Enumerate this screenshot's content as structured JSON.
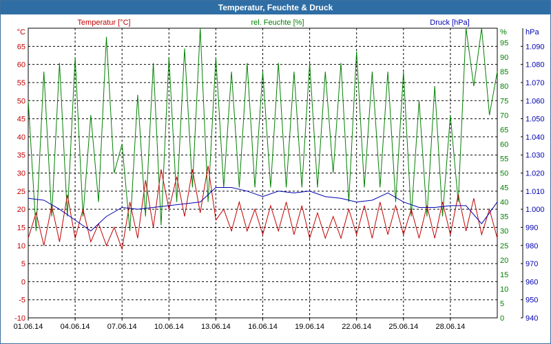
{
  "window": {
    "title": "Temperatur, Feuchte & Druck"
  },
  "colors": {
    "temperature": "#c00000",
    "humidity": "#008000",
    "pressure": "#0000b0",
    "grid": "#000000"
  },
  "chart_data": {
    "type": "line",
    "title": "Temperatur, Feuchte & Druck",
    "x_tick_labels": [
      "01.06.14",
      "04.06.14",
      "07.06.14",
      "10.06.14",
      "13.06.14",
      "16.06.14",
      "19.06.14",
      "22.06.14",
      "25.06.14",
      "28.06.14"
    ],
    "x_range_days": [
      0,
      30
    ],
    "axes": {
      "temperature": {
        "label": "Temperatur [°C]",
        "unit": "°C",
        "range": [
          -10,
          70
        ],
        "ticks": [
          -10,
          -5,
          0,
          5,
          10,
          15,
          20,
          25,
          30,
          35,
          40,
          45,
          50,
          55,
          60,
          65
        ]
      },
      "humidity": {
        "label": "rel. Feuchte [%]",
        "unit": "%",
        "range": [
          0,
          100
        ],
        "ticks": [
          0,
          5,
          10,
          15,
          20,
          25,
          30,
          35,
          40,
          45,
          50,
          55,
          60,
          65,
          70,
          75,
          80,
          85,
          90,
          95
        ]
      },
      "pressure": {
        "label": "Druck [hPa]",
        "unit": "hPa",
        "range": [
          940,
          1100
        ],
        "ticks": [
          "940",
          "950",
          "960",
          "970",
          "980",
          "990",
          "1.000",
          "1.010",
          "1.020",
          "1.030",
          "1.040",
          "1.050",
          "1.060",
          "1.070",
          "1.080",
          "1.090"
        ]
      }
    },
    "series": [
      {
        "name": "Temperatur [°C]",
        "axis": "temperature",
        "values": [
          [
            0,
            12
          ],
          [
            0.5,
            19
          ],
          [
            1,
            10
          ],
          [
            1.5,
            21
          ],
          [
            2,
            11
          ],
          [
            2.5,
            24
          ],
          [
            3,
            12
          ],
          [
            3.5,
            20
          ],
          [
            4,
            11
          ],
          [
            4.5,
            16
          ],
          [
            5,
            10
          ],
          [
            5.5,
            15
          ],
          [
            6,
            9
          ],
          [
            6.5,
            22
          ],
          [
            7,
            12
          ],
          [
            7.5,
            28
          ],
          [
            8,
            15
          ],
          [
            8.5,
            31
          ],
          [
            9,
            20
          ],
          [
            9.5,
            29
          ],
          [
            10,
            18
          ],
          [
            10.5,
            31
          ],
          [
            11,
            19
          ],
          [
            11.5,
            32
          ],
          [
            12,
            17
          ],
          [
            12.5,
            20
          ],
          [
            13,
            14
          ],
          [
            13.5,
            22
          ],
          [
            14,
            14
          ],
          [
            14.5,
            20
          ],
          [
            15,
            13
          ],
          [
            15.5,
            21
          ],
          [
            16,
            14
          ],
          [
            16.5,
            22
          ],
          [
            17,
            13
          ],
          [
            17.5,
            21
          ],
          [
            18,
            12
          ],
          [
            18.5,
            19
          ],
          [
            19,
            12
          ],
          [
            19.5,
            18
          ],
          [
            20,
            12
          ],
          [
            20.5,
            20
          ],
          [
            21,
            13
          ],
          [
            21.5,
            21
          ],
          [
            22,
            12
          ],
          [
            22.5,
            22
          ],
          [
            23,
            13
          ],
          [
            23.5,
            21
          ],
          [
            24,
            13
          ],
          [
            24.5,
            20
          ],
          [
            25,
            12
          ],
          [
            25.5,
            21
          ],
          [
            26,
            12
          ],
          [
            26.5,
            22
          ],
          [
            27,
            13
          ],
          [
            27.5,
            24
          ],
          [
            28,
            14
          ],
          [
            28.5,
            23
          ],
          [
            29,
            13
          ],
          [
            29.5,
            20
          ],
          [
            30,
            12
          ]
        ]
      },
      {
        "name": "rel. Feuchte [%]",
        "axis": "humidity",
        "values": [
          [
            0,
            75
          ],
          [
            0.5,
            30
          ],
          [
            1,
            85
          ],
          [
            1.5,
            35
          ],
          [
            2,
            88
          ],
          [
            2.5,
            35
          ],
          [
            3,
            90
          ],
          [
            3.5,
            35
          ],
          [
            4,
            70
          ],
          [
            4.5,
            40
          ],
          [
            5,
            97
          ],
          [
            5.5,
            50
          ],
          [
            6,
            60
          ],
          [
            6.5,
            30
          ],
          [
            7,
            77
          ],
          [
            7.5,
            35
          ],
          [
            8,
            88
          ],
          [
            8.5,
            32
          ],
          [
            9,
            90
          ],
          [
            9.5,
            40
          ],
          [
            10,
            93
          ],
          [
            10.5,
            45
          ],
          [
            11,
            100
          ],
          [
            11.5,
            40
          ],
          [
            12,
            90
          ],
          [
            12.5,
            45
          ],
          [
            13,
            85
          ],
          [
            13.5,
            45
          ],
          [
            14,
            88
          ],
          [
            14.5,
            45
          ],
          [
            15,
            85
          ],
          [
            15.5,
            45
          ],
          [
            16,
            88
          ],
          [
            16.5,
            45
          ],
          [
            17,
            85
          ],
          [
            17.5,
            45
          ],
          [
            18,
            88
          ],
          [
            18.5,
            45
          ],
          [
            19,
            85
          ],
          [
            19.5,
            50
          ],
          [
            20,
            88
          ],
          [
            20.5,
            40
          ],
          [
            21,
            92
          ],
          [
            21.5,
            45
          ],
          [
            22,
            85
          ],
          [
            22.5,
            45
          ],
          [
            23,
            85
          ],
          [
            23.5,
            40
          ],
          [
            24,
            85
          ],
          [
            24.5,
            35
          ],
          [
            25,
            75
          ],
          [
            25.5,
            35
          ],
          [
            26,
            80
          ],
          [
            26.5,
            35
          ],
          [
            27,
            70
          ],
          [
            27.5,
            40
          ],
          [
            28,
            100
          ],
          [
            28.5,
            80
          ],
          [
            29,
            100
          ],
          [
            29.5,
            70
          ],
          [
            30,
            85
          ]
        ]
      },
      {
        "name": "Druck [hPa]",
        "axis": "pressure",
        "values": [
          [
            0,
            1006
          ],
          [
            1,
            1005
          ],
          [
            2,
            1000
          ],
          [
            3,
            994
          ],
          [
            4,
            988
          ],
          [
            5,
            996
          ],
          [
            6,
            1001
          ],
          [
            7,
            1000
          ],
          [
            8,
            1001
          ],
          [
            9,
            1002
          ],
          [
            10,
            1003
          ],
          [
            11,
            1004
          ],
          [
            12,
            1012
          ],
          [
            13,
            1012
          ],
          [
            14,
            1010
          ],
          [
            15,
            1007
          ],
          [
            16,
            1010
          ],
          [
            17,
            1009
          ],
          [
            18,
            1010
          ],
          [
            19,
            1007
          ],
          [
            20,
            1006
          ],
          [
            21,
            1004
          ],
          [
            22,
            1005
          ],
          [
            23,
            1009
          ],
          [
            24,
            1004
          ],
          [
            25,
            1001
          ],
          [
            26,
            1001
          ],
          [
            27,
            1002
          ],
          [
            28,
            1002
          ],
          [
            29,
            992
          ],
          [
            30,
            1004
          ]
        ]
      }
    ]
  }
}
